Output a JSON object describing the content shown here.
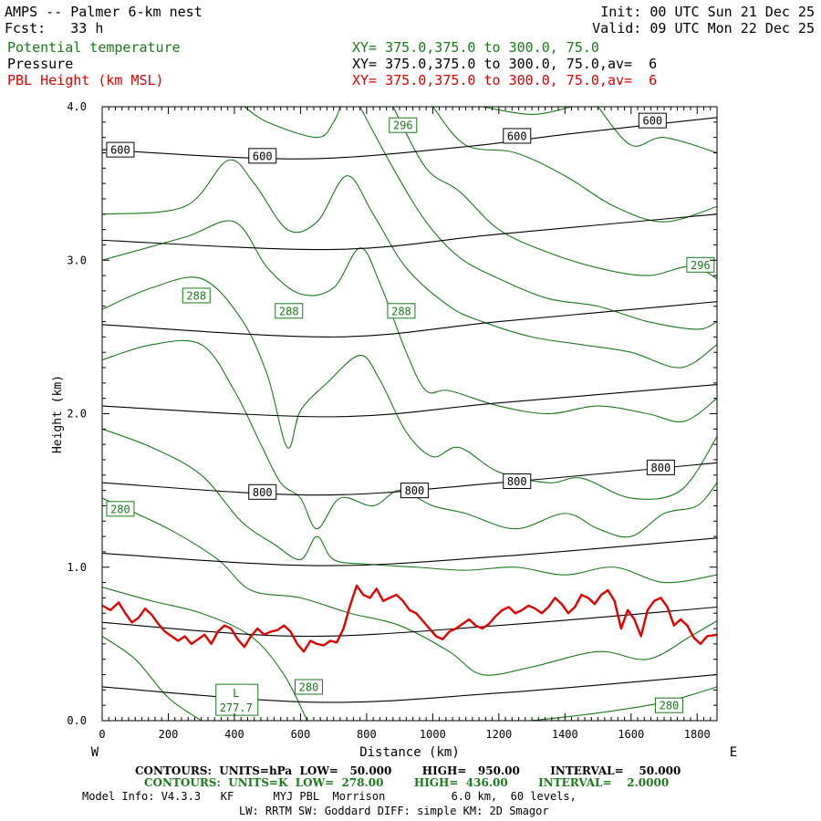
{
  "header": {
    "title": "AMPS -- Palmer 6-km nest",
    "fcst": "Fcst:   33 h",
    "init": "Init: 00 UTC Sun 21 Dec 25",
    "valid": "Valid: 09 UTC Mon 22 Dec 25",
    "field1_name": "Potential temperature",
    "field1_xy": "XY= 375.0,375.0 to 300.0, 75.0",
    "field2_name": "Pressure",
    "field2_xy": "XY= 375.0,375.0 to 300.0, 75.0,av=  6",
    "field3_name": "PBL Height (km MSL)",
    "field3_xy": "XY= 375.0,375.0 to 300.0, 75.0,av=  6"
  },
  "colors": {
    "pressure": "#000000",
    "theta": "#1a7a1a",
    "pbl": "#e00000"
  },
  "chart_data": {
    "type": "line",
    "xlabel": "Distance (km)",
    "ylabel": "Height (km)",
    "xlim": [
      0,
      1860
    ],
    "ylim": [
      0,
      4.0
    ],
    "x_ticks": [
      "0",
      "200",
      "400",
      "600",
      "800",
      "1000",
      "1200",
      "1400",
      "1600",
      "1800"
    ],
    "y_ticks": [
      "0.0",
      "1.0",
      "2.0",
      "3.0",
      "4.0"
    ],
    "left_end_label": "W",
    "right_end_label": "E",
    "pressure_contours": [
      {
        "points": [
          [
            0,
            3.72
          ],
          [
            600,
            3.66
          ],
          [
            1100,
            3.74
          ],
          [
            1400,
            3.82
          ],
          [
            1860,
            3.93
          ]
        ]
      },
      {
        "points": [
          [
            0,
            3.13
          ],
          [
            700,
            3.07
          ],
          [
            1200,
            3.17
          ],
          [
            1860,
            3.3
          ]
        ]
      },
      {
        "points": [
          [
            0,
            2.58
          ],
          [
            700,
            2.5
          ],
          [
            1200,
            2.6
          ],
          [
            1860,
            2.73
          ]
        ]
      },
      {
        "points": [
          [
            0,
            2.05
          ],
          [
            700,
            1.98
          ],
          [
            1200,
            2.07
          ],
          [
            1860,
            2.19
          ]
        ]
      },
      {
        "points": [
          [
            0,
            1.55
          ],
          [
            650,
            1.47
          ],
          [
            1200,
            1.55
          ],
          [
            1860,
            1.68
          ]
        ]
      },
      {
        "points": [
          [
            0,
            1.09
          ],
          [
            650,
            1.01
          ],
          [
            1200,
            1.07
          ],
          [
            1860,
            1.19
          ]
        ]
      },
      {
        "points": [
          [
            0,
            0.64
          ],
          [
            600,
            0.55
          ],
          [
            1200,
            0.62
          ],
          [
            1860,
            0.74
          ]
        ]
      },
      {
        "points": [
          [
            0,
            0.22
          ],
          [
            650,
            0.12
          ],
          [
            1200,
            0.18
          ],
          [
            1860,
            0.3
          ]
        ]
      }
    ],
    "pressure_labels": [
      {
        "text": "600",
        "x": 55,
        "y": 3.72
      },
      {
        "text": "600",
        "x": 485,
        "y": 3.68
      },
      {
        "text": "600",
        "x": 1255,
        "y": 3.81
      },
      {
        "text": "600",
        "x": 1665,
        "y": 3.91
      },
      {
        "text": "800",
        "x": 485,
        "y": 1.49
      },
      {
        "text": "800",
        "x": 945,
        "y": 1.5
      },
      {
        "text": "800",
        "x": 1255,
        "y": 1.56
      },
      {
        "text": "800",
        "x": 1690,
        "y": 1.65
      }
    ],
    "theta_contours": [
      {
        "points": [
          [
            0,
            0.55
          ],
          [
            100,
            0.4
          ],
          [
            200,
            0.15
          ],
          [
            300,
            0.0
          ]
        ]
      },
      {
        "points": [
          [
            0,
            0.87
          ],
          [
            150,
            0.78
          ],
          [
            300,
            0.7
          ],
          [
            450,
            0.55
          ],
          [
            550,
            0.3
          ],
          [
            620,
            0.0
          ]
        ]
      },
      {
        "points": [
          [
            0,
            1.45
          ],
          [
            200,
            1.25
          ],
          [
            350,
            1.05
          ],
          [
            450,
            0.85
          ],
          [
            600,
            0.8
          ],
          [
            750,
            0.7
          ],
          [
            900,
            0.62
          ],
          [
            1050,
            0.45
          ],
          [
            1150,
            0.3
          ],
          [
            1300,
            0.35
          ],
          [
            1500,
            0.45
          ],
          [
            1650,
            0.4
          ],
          [
            1780,
            0.55
          ],
          [
            1860,
            0.65
          ]
        ]
      },
      {
        "points": [
          [
            0,
            1.9
          ],
          [
            150,
            1.78
          ],
          [
            300,
            1.6
          ],
          [
            420,
            1.3
          ],
          [
            520,
            1.15
          ],
          [
            600,
            1.05
          ],
          [
            650,
            1.2
          ],
          [
            700,
            1.05
          ],
          [
            800,
            1.02
          ],
          [
            950,
            1.0
          ],
          [
            1100,
            0.98
          ],
          [
            1250,
            1.0
          ],
          [
            1400,
            0.95
          ],
          [
            1550,
            1.0
          ],
          [
            1700,
            0.9
          ],
          [
            1860,
            0.95
          ]
        ]
      },
      {
        "points": [
          [
            0,
            2.35
          ],
          [
            150,
            2.45
          ],
          [
            300,
            2.45
          ],
          [
            400,
            2.15
          ],
          [
            480,
            1.8
          ],
          [
            540,
            1.55
          ],
          [
            600,
            1.45
          ],
          [
            650,
            1.25
          ],
          [
            720,
            1.45
          ],
          [
            820,
            1.4
          ],
          [
            900,
            1.5
          ],
          [
            1000,
            1.4
          ],
          [
            1100,
            1.35
          ],
          [
            1250,
            1.25
          ],
          [
            1400,
            1.35
          ],
          [
            1500,
            1.25
          ],
          [
            1600,
            1.2
          ],
          [
            1700,
            1.35
          ],
          [
            1800,
            1.4
          ],
          [
            1860,
            1.55
          ]
        ]
      },
      {
        "points": [
          [
            0,
            2.68
          ],
          [
            150,
            2.82
          ],
          [
            300,
            2.88
          ],
          [
            420,
            2.62
          ],
          [
            500,
            2.25
          ],
          [
            560,
            1.78
          ],
          [
            600,
            2.02
          ],
          [
            680,
            2.2
          ],
          [
            780,
            2.38
          ],
          [
            840,
            2.22
          ],
          [
            920,
            1.88
          ],
          [
            1000,
            1.72
          ],
          [
            1080,
            1.78
          ],
          [
            1200,
            1.62
          ],
          [
            1350,
            1.55
          ],
          [
            1450,
            1.58
          ],
          [
            1600,
            1.45
          ],
          [
            1750,
            1.5
          ],
          [
            1860,
            1.85
          ]
        ]
      },
      {
        "points": [
          [
            0,
            3.0
          ],
          [
            250,
            3.15
          ],
          [
            400,
            3.25
          ],
          [
            500,
            2.95
          ],
          [
            600,
            2.78
          ],
          [
            700,
            2.82
          ],
          [
            780,
            3.08
          ],
          [
            840,
            2.85
          ],
          [
            920,
            2.4
          ],
          [
            980,
            2.15
          ],
          [
            1050,
            2.15
          ],
          [
            1200,
            2.05
          ],
          [
            1350,
            2.0
          ],
          [
            1500,
            2.05
          ],
          [
            1650,
            2.0
          ],
          [
            1760,
            1.95
          ],
          [
            1860,
            2.1
          ]
        ]
      },
      {
        "points": [
          [
            0,
            3.3
          ],
          [
            250,
            3.35
          ],
          [
            380,
            3.65
          ],
          [
            460,
            3.5
          ],
          [
            560,
            3.2
          ],
          [
            650,
            3.25
          ],
          [
            740,
            3.55
          ],
          [
            820,
            3.3
          ],
          [
            920,
            2.95
          ],
          [
            1050,
            2.7
          ],
          [
            1150,
            2.6
          ],
          [
            1300,
            2.5
          ],
          [
            1450,
            2.45
          ],
          [
            1600,
            2.4
          ],
          [
            1750,
            2.3
          ],
          [
            1860,
            2.45
          ]
        ]
      },
      {
        "points": [
          [
            430,
            4.0
          ],
          [
            500,
            3.9
          ],
          [
            650,
            3.8
          ],
          [
            700,
            3.9
          ],
          [
            720,
            4.0
          ]
        ]
      },
      {
        "points": [
          [
            780,
            4.0
          ],
          [
            880,
            3.6
          ],
          [
            980,
            3.25
          ],
          [
            1080,
            3.02
          ],
          [
            1200,
            2.88
          ],
          [
            1350,
            2.75
          ],
          [
            1500,
            2.7
          ],
          [
            1650,
            2.6
          ],
          [
            1800,
            2.55
          ],
          [
            1860,
            2.6
          ]
        ]
      },
      {
        "points": [
          [
            880,
            4.0
          ],
          [
            980,
            3.6
          ],
          [
            1080,
            3.45
          ],
          [
            1200,
            3.2
          ],
          [
            1350,
            3.05
          ],
          [
            1500,
            2.95
          ],
          [
            1650,
            2.9
          ],
          [
            1780,
            2.96
          ],
          [
            1860,
            2.88
          ]
        ]
      },
      {
        "points": [
          [
            1000,
            4.0
          ],
          [
            1100,
            3.75
          ],
          [
            1250,
            3.7
          ],
          [
            1400,
            3.55
          ],
          [
            1550,
            3.35
          ],
          [
            1700,
            3.25
          ],
          [
            1860,
            3.35
          ]
        ]
      },
      {
        "points": [
          [
            1150,
            4.0
          ],
          [
            1300,
            3.95
          ],
          [
            1420,
            4.0
          ]
        ]
      },
      {
        "points": [
          [
            1500,
            4.0
          ],
          [
            1600,
            3.75
          ],
          [
            1700,
            3.8
          ],
          [
            1860,
            3.7
          ]
        ]
      },
      {
        "points": [
          [
            1300,
            0.0
          ],
          [
            1500,
            0.05
          ],
          [
            1700,
            0.12
          ],
          [
            1860,
            0.22
          ]
        ]
      }
    ],
    "theta_labels": [
      {
        "text": "296",
        "x": 910,
        "y": 3.88
      },
      {
        "text": "296",
        "x": 1810,
        "y": 2.97
      },
      {
        "text": "288",
        "x": 285,
        "y": 2.77
      },
      {
        "text": "288",
        "x": 565,
        "y": 2.67
      },
      {
        "text": "288",
        "x": 905,
        "y": 2.67
      },
      {
        "text": "280",
        "x": 55,
        "y": 1.38
      },
      {
        "text": "280",
        "x": 625,
        "y": 0.22
      },
      {
        "text": "280",
        "x": 1715,
        "y": 0.1
      }
    ],
    "low_marker": {
      "letter": "L",
      "value": "277.7",
      "x": 405,
      "y": 0.13
    },
    "pbl_height": {
      "name": "PBL Height (km MSL)",
      "x": [
        0,
        25,
        50,
        70,
        90,
        110,
        130,
        150,
        170,
        190,
        210,
        230,
        250,
        270,
        290,
        310,
        330,
        350,
        370,
        390,
        410,
        430,
        450,
        470,
        490,
        510,
        530,
        550,
        570,
        590,
        610,
        630,
        650,
        670,
        690,
        710,
        730,
        750,
        770,
        790,
        810,
        830,
        850,
        870,
        890,
        910,
        930,
        950,
        970,
        990,
        1010,
        1030,
        1050,
        1070,
        1090,
        1110,
        1130,
        1150,
        1170,
        1190,
        1210,
        1230,
        1250,
        1270,
        1290,
        1310,
        1330,
        1350,
        1370,
        1390,
        1410,
        1430,
        1450,
        1470,
        1490,
        1510,
        1530,
        1550,
        1570,
        1590,
        1610,
        1630,
        1650,
        1670,
        1690,
        1710,
        1730,
        1750,
        1770,
        1790,
        1810,
        1830,
        1860
      ],
      "y": [
        0.75,
        0.72,
        0.77,
        0.7,
        0.64,
        0.67,
        0.73,
        0.69,
        0.63,
        0.58,
        0.55,
        0.52,
        0.55,
        0.5,
        0.53,
        0.56,
        0.5,
        0.58,
        0.62,
        0.6,
        0.53,
        0.48,
        0.55,
        0.6,
        0.56,
        0.58,
        0.59,
        0.62,
        0.58,
        0.5,
        0.45,
        0.52,
        0.5,
        0.49,
        0.52,
        0.51,
        0.6,
        0.75,
        0.88,
        0.82,
        0.8,
        0.86,
        0.78,
        0.8,
        0.82,
        0.78,
        0.72,
        0.7,
        0.65,
        0.6,
        0.55,
        0.53,
        0.58,
        0.6,
        0.63,
        0.66,
        0.62,
        0.6,
        0.63,
        0.68,
        0.72,
        0.74,
        0.7,
        0.72,
        0.75,
        0.73,
        0.7,
        0.74,
        0.8,
        0.76,
        0.7,
        0.74,
        0.82,
        0.8,
        0.76,
        0.82,
        0.85,
        0.78,
        0.6,
        0.72,
        0.66,
        0.55,
        0.72,
        0.78,
        0.8,
        0.74,
        0.62,
        0.66,
        0.62,
        0.54,
        0.5,
        0.55,
        0.56
      ]
    }
  },
  "footer": {
    "line1": "CONTOURS:  UNITS=hPa  LOW=   50.000        HIGH=   950.00        INTERVAL=    50.000",
    "line2": "CONTOURS:  UNITS=K  LOW=  278.00        HIGH=  436.00        INTERVAL=    2.0000",
    "line3": "Model Info: V4.3.3   KF      MYJ PBL  Morrison          6.0 km,  60 levels,",
    "line4": "LW: RRTM SW: Goddard DIFF: simple KM: 2D Smagor"
  }
}
